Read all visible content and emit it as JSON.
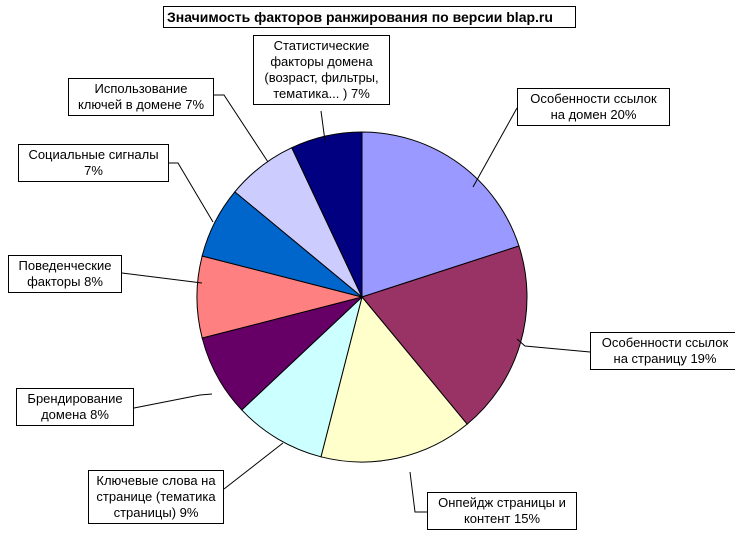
{
  "chart_data": {
    "type": "pie",
    "title": "Значимость факторов ранжирования по версии blap.ru",
    "slices": [
      {
        "label": [
          "Особенности ссылок",
          "на домен 20%"
        ],
        "value": 20,
        "color": "#9999ff"
      },
      {
        "label": [
          "Особенности ссылок",
          "на страницу 19%"
        ],
        "value": 19,
        "color": "#993366"
      },
      {
        "label": [
          "Онпейдж страницы и",
          "контент 15%"
        ],
        "value": 15,
        "color": "#ffffcc"
      },
      {
        "label": [
          "Ключевые слова на",
          "странице (тематика",
          "страницы) 9%"
        ],
        "value": 9,
        "color": "#ccffff"
      },
      {
        "label": [
          "Брендирование",
          "домена 8%"
        ],
        "value": 8,
        "color": "#660066"
      },
      {
        "label": [
          "Поведенческие",
          "факторы 8%"
        ],
        "value": 8,
        "color": "#ff8080"
      },
      {
        "label": [
          "Социальные сигналы",
          "7%"
        ],
        "value": 7,
        "color": "#0066cc"
      },
      {
        "label": [
          "Использование",
          "ключей в домене 7%"
        ],
        "value": 7,
        "color": "#ccccff"
      },
      {
        "label": [
          "Статистические",
          "факторы домена",
          "(возраст, фильтры,",
          "тематика... ) 7%"
        ],
        "value": 7,
        "color": "#000080"
      }
    ]
  }
}
